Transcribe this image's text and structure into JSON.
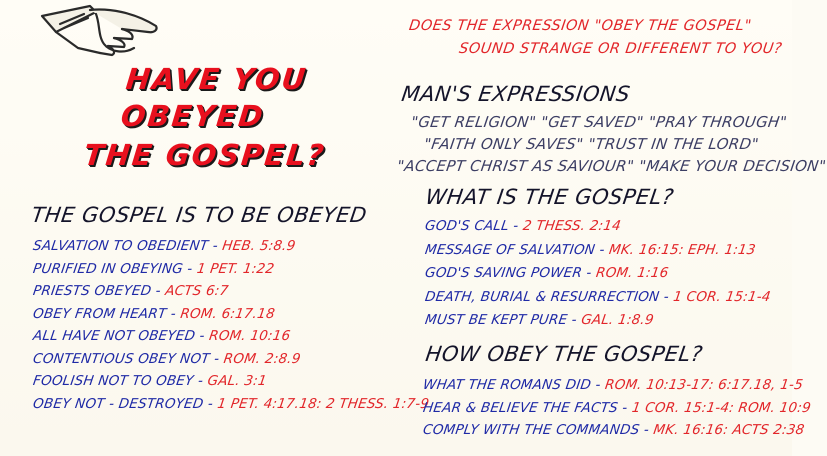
{
  "title": {
    "line1": "HAVE YOU",
    "line2": "OBEYED",
    "line3": "THE GOSPEL?"
  },
  "question": {
    "line1": "DOES THE EXPRESSION \"OBEY THE GOSPEL\"",
    "line2": "SOUND STRANGE OR DIFFERENT TO YOU?"
  },
  "mans_expressions": {
    "heading": "MAN'S EXPRESSIONS",
    "lines": [
      "\"GET RELIGION\" \"GET SAVED\" \"PRAY THROUGH\"",
      "\"FAITH ONLY SAVES\" \"TRUST IN THE LORD\"",
      "\"ACCEPT CHRIST AS SAVIOUR\" \"MAKE YOUR DECISION\""
    ]
  },
  "to_be_obeyed": {
    "heading": "THE GOSPEL IS TO BE OBEYED",
    "items": [
      {
        "text": "SALVATION TO OBEDIENT - ",
        "ref": "HEB. 5:8.9"
      },
      {
        "text": "PURIFIED IN OBEYING - ",
        "ref": "1 PET. 1:22"
      },
      {
        "text": "PRIESTS OBEYED - ",
        "ref": "ACTS 6:7"
      },
      {
        "text": "OBEY FROM HEART - ",
        "ref": "ROM. 6:17.18"
      },
      {
        "text": "ALL HAVE NOT OBEYED - ",
        "ref": "ROM. 10:16"
      },
      {
        "text": "CONTENTIOUS OBEY NOT - ",
        "ref": "ROM. 2:8.9"
      },
      {
        "text": "FOOLISH NOT TO OBEY - ",
        "ref": "GAL. 3:1"
      },
      {
        "text": "OBEY NOT - DESTROYED - ",
        "ref": "1 PET. 4:17.18: 2 THESS. 1:7-9"
      }
    ]
  },
  "what_is": {
    "heading": "WHAT IS THE GOSPEL?",
    "items": [
      {
        "text": "GOD'S CALL - ",
        "ref": "2 THESS. 2:14"
      },
      {
        "text": "MESSAGE OF SALVATION - ",
        "ref": "MK. 16:15: EPH. 1:13"
      },
      {
        "text": "GOD'S SAVING POWER - ",
        "ref": "ROM. 1:16"
      },
      {
        "text": "DEATH, BURIAL & RESURRECTION - ",
        "ref": "1 COR. 15:1-4"
      },
      {
        "text": "MUST BE KEPT PURE - ",
        "ref": "GAL. 1:8.9"
      }
    ]
  },
  "how_obey": {
    "heading": "HOW OBEY THE GOSPEL?",
    "items": [
      {
        "text": "WHAT THE ROMANS DID - ",
        "ref": "ROM. 10:13-17: 6:17.18, 1-5"
      },
      {
        "text": "HEAR & BELIEVE THE FACTS - ",
        "ref": "1 COR. 15:1-4: ROM. 10:9"
      },
      {
        "text": "COMPLY WITH THE COMMANDS - ",
        "ref": "MK. 16:16: ACTS 2:38"
      }
    ]
  }
}
